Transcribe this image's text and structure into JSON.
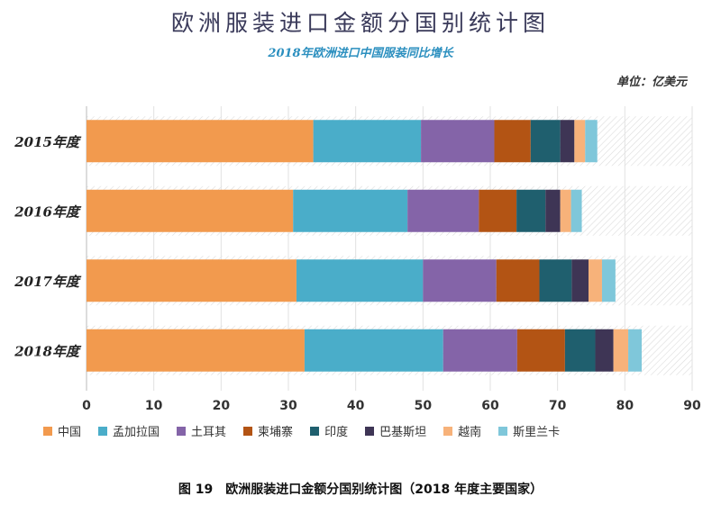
{
  "title": "欧洲服装进口金额分国别统计图",
  "subtitle": "2018年欧洲进口中国服装同比增长",
  "unit_label": "单位：亿美元",
  "caption": "图 19　欧洲服装进口金额分国别统计图（2018 年度主要国家）",
  "colors": {
    "中国": "#f29a4e",
    "孟加拉国": "#4aadc9",
    "土耳其": "#8464a8",
    "柬埔寨": "#b35414",
    "印度": "#1f5f6e",
    "巴基斯坦": "#3e3555",
    "越南": "#f7b27a",
    "斯里兰卡": "#7fc7da"
  },
  "chart_data": {
    "type": "bar",
    "orientation": "horizontal",
    "stacked": true,
    "categories": [
      "2015年度",
      "2016年度",
      "2017年度",
      "2018年度"
    ],
    "series": [
      {
        "name": "中国",
        "values": [
          33.7,
          30.7,
          31.2,
          32.4
        ]
      },
      {
        "name": "孟加拉国",
        "values": [
          16.0,
          17.0,
          18.8,
          20.6
        ]
      },
      {
        "name": "土耳其",
        "values": [
          10.9,
          10.6,
          10.9,
          11.0
        ]
      },
      {
        "name": "柬埔寨",
        "values": [
          5.4,
          5.6,
          6.4,
          7.1
        ]
      },
      {
        "name": "印度",
        "values": [
          4.4,
          4.3,
          4.8,
          4.5
        ]
      },
      {
        "name": "巴基斯坦",
        "values": [
          2.1,
          2.2,
          2.5,
          2.7
        ]
      },
      {
        "name": "越南",
        "values": [
          1.6,
          1.6,
          2.0,
          2.2
        ]
      },
      {
        "name": "斯里兰卡",
        "values": [
          1.8,
          1.6,
          2.0,
          2.0
        ]
      }
    ],
    "xlim": [
      0,
      90
    ],
    "xticks": [
      0,
      10,
      20,
      30,
      40,
      50,
      60,
      70,
      80,
      90
    ],
    "legend_position": "bottom"
  }
}
